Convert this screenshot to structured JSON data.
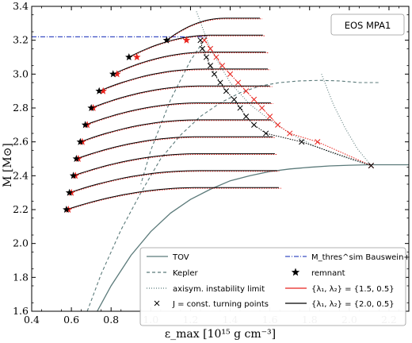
{
  "chart_data": {
    "type": "line",
    "eos_label": "EOS MPA1",
    "xlabel": "ε_max [10¹⁵ g cm⁻³]",
    "ylabel": "M [M⊙]",
    "xlim": [
      0.4,
      2.3
    ],
    "ylim": [
      1.6,
      3.4
    ],
    "xticks": [
      "0.4",
      "0.6",
      "0.8",
      "1.0",
      "1.2",
      "1.4",
      "1.6",
      "1.8",
      "2.0",
      "2.2"
    ],
    "yticks": [
      "1.6",
      "1.8",
      "2.0",
      "2.2",
      "2.4",
      "2.6",
      "2.8",
      "3.0",
      "3.2",
      "3.4"
    ],
    "legend": {
      "left": [
        {
          "label": "TOV",
          "style": "solid",
          "color": "#5b7a7a"
        },
        {
          "label": "Kepler",
          "style": "dashed",
          "color": "#5b7a7a"
        },
        {
          "label": "axisym. instability limit",
          "style": "dotted",
          "color": "#5b7a7a"
        },
        {
          "label": "J = const. turning points",
          "marker": "x",
          "color": "#000000"
        }
      ],
      "right": [
        {
          "label": "M_thres^sim Bauswein+ (2020)",
          "style": "dashdot",
          "color": "#3b4fc4"
        },
        {
          "label": "remnant",
          "marker": "star",
          "color": "#000000"
        },
        {
          "label": "{λ₁, λ₂} = {1.5, 0.5}",
          "style": "solid",
          "color": "#e8231d"
        },
        {
          "label": "{λ₁, λ₂} = {2.0, 0.5}",
          "style": "solid",
          "color": "#000000"
        }
      ]
    },
    "tov": [
      [
        0.73,
        1.6
      ],
      [
        0.8,
        1.75
      ],
      [
        0.9,
        1.93
      ],
      [
        1.0,
        2.07
      ],
      [
        1.1,
        2.18
      ],
      [
        1.2,
        2.26
      ],
      [
        1.3,
        2.32
      ],
      [
        1.4,
        2.37
      ],
      [
        1.5,
        2.4
      ],
      [
        1.6,
        2.425
      ],
      [
        1.7,
        2.44
      ],
      [
        1.8,
        2.45
      ],
      [
        1.9,
        2.458
      ],
      [
        2.0,
        2.462
      ],
      [
        2.1,
        2.465
      ],
      [
        2.3,
        2.465
      ]
    ],
    "kepler": [
      [
        0.68,
        1.6
      ],
      [
        0.75,
        1.82
      ],
      [
        0.85,
        2.08
      ],
      [
        0.95,
        2.3
      ],
      [
        1.05,
        2.5
      ],
      [
        1.15,
        2.64
      ],
      [
        1.25,
        2.75
      ],
      [
        1.35,
        2.83
      ],
      [
        1.45,
        2.89
      ],
      [
        1.55,
        2.93
      ],
      [
        1.65,
        2.95
      ],
      [
        1.75,
        2.96
      ],
      [
        1.85,
        2.963
      ],
      [
        1.95,
        2.96
      ],
      [
        2.05,
        2.95
      ],
      [
        2.15,
        2.95
      ]
    ],
    "kepler_upper": [
      [
        1.28,
        3.22
      ],
      [
        1.2,
        3.08
      ],
      [
        1.1,
        2.85
      ],
      [
        1.0,
        2.55
      ],
      [
        0.95,
        2.35
      ]
    ],
    "instability_limit": [
      [
        1.23,
        3.37
      ],
      [
        1.3,
        3.15
      ],
      [
        1.4,
        2.95
      ],
      [
        1.5,
        2.82
      ],
      [
        1.6,
        2.73
      ],
      [
        1.7,
        2.65
      ],
      [
        1.8,
        2.59
      ],
      [
        1.9,
        2.54
      ],
      [
        2.0,
        2.5
      ],
      [
        2.11,
        2.46
      ]
    ],
    "instability_branch": [
      [
        1.86,
        3.0
      ],
      [
        1.92,
        2.82
      ],
      [
        1.98,
        2.68
      ],
      [
        2.04,
        2.56
      ],
      [
        2.11,
        2.46
      ]
    ],
    "threshold_line": {
      "y": 3.22,
      "x": [
        0.4,
        1.28
      ]
    },
    "sequences": [
      {
        "y0": 2.2,
        "x0": 0.575,
        "x1": 1.645
      },
      {
        "y0": 2.3,
        "x0": 0.59,
        "x1": 1.635
      },
      {
        "y0": 2.4,
        "x0": 0.61,
        "x1": 1.625
      },
      {
        "y0": 2.5,
        "x0": 0.625,
        "x1": 1.615
      },
      {
        "y0": 2.6,
        "x0": 0.645,
        "x1": 1.605
      },
      {
        "y0": 2.7,
        "x0": 0.67,
        "x1": 1.605
      },
      {
        "y0": 2.8,
        "x0": 0.7,
        "x1": 1.6
      },
      {
        "y0": 2.9,
        "x0": 0.74,
        "x1": 1.59
      },
      {
        "y0": 3.0,
        "x0": 0.81,
        "x1": 1.58
      },
      {
        "y0": 3.1,
        "x0": 0.89,
        "x1": 1.565
      },
      {
        "y0": 3.2,
        "x0": 1.08,
        "x1": 1.55
      }
    ],
    "black_turning_points": [
      [
        1.25,
        3.2
      ],
      [
        1.26,
        3.15
      ],
      [
        1.28,
        3.1
      ],
      [
        1.3,
        3.05
      ],
      [
        1.32,
        3.0
      ],
      [
        1.35,
        2.95
      ],
      [
        1.38,
        2.9
      ],
      [
        1.42,
        2.85
      ],
      [
        1.45,
        2.8
      ],
      [
        1.48,
        2.75
      ],
      [
        1.52,
        2.7
      ],
      [
        1.58,
        2.65
      ],
      [
        1.76,
        2.6
      ],
      [
        2.11,
        2.46
      ]
    ],
    "red_turning_points": [
      [
        1.27,
        3.2
      ],
      [
        1.3,
        3.15
      ],
      [
        1.33,
        3.1
      ],
      [
        1.36,
        3.05
      ],
      [
        1.4,
        3.0
      ],
      [
        1.44,
        2.95
      ],
      [
        1.48,
        2.9
      ],
      [
        1.52,
        2.85
      ],
      [
        1.56,
        2.8
      ],
      [
        1.6,
        2.75
      ],
      [
        1.64,
        2.7
      ],
      [
        1.7,
        2.65
      ],
      [
        1.84,
        2.6
      ],
      [
        2.11,
        2.46
      ]
    ],
    "black_remnants": [
      [
        0.575,
        2.2
      ],
      [
        0.59,
        2.3
      ],
      [
        0.61,
        2.4
      ],
      [
        0.625,
        2.5
      ],
      [
        0.645,
        2.6
      ],
      [
        0.67,
        2.7
      ],
      [
        0.7,
        2.8
      ],
      [
        0.74,
        2.9
      ],
      [
        0.81,
        3.0
      ],
      [
        0.89,
        3.1
      ],
      [
        1.08,
        3.2
      ]
    ],
    "red_remnants": [
      [
        0.585,
        2.2
      ],
      [
        0.6,
        2.3
      ],
      [
        0.62,
        2.4
      ],
      [
        0.635,
        2.5
      ],
      [
        0.655,
        2.6
      ],
      [
        0.68,
        2.7
      ],
      [
        0.71,
        2.8
      ],
      [
        0.76,
        2.9
      ],
      [
        0.83,
        3.0
      ],
      [
        0.93,
        3.1
      ],
      [
        1.18,
        3.2
      ]
    ]
  }
}
